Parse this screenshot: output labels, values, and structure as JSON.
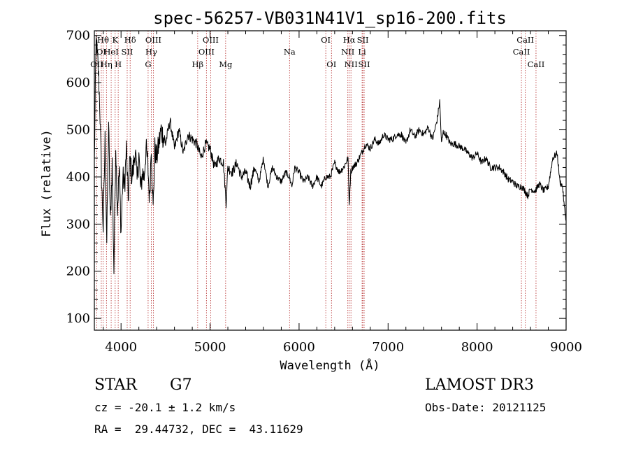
{
  "chart_data": {
    "type": "line",
    "title": "spec-56257-VB031N41V1_sp16-200.fits",
    "xlabel": "Wavelength (Å)",
    "ylabel": "Flux (relative)",
    "xlim": [
      3700,
      9000
    ],
    "ylim": [
      75,
      710
    ],
    "xticks": [
      4000,
      5000,
      6000,
      7000,
      8000,
      9000
    ],
    "yticks": [
      100,
      200,
      300,
      400,
      500,
      600,
      700
    ],
    "series": [
      {
        "name": "spectrum",
        "color": "#000000",
        "x": [
          3700,
          3720,
          3740,
          3760,
          3780,
          3800,
          3820,
          3840,
          3860,
          3880,
          3900,
          3920,
          3940,
          3960,
          3980,
          4000,
          4020,
          4040,
          4060,
          4080,
          4100,
          4120,
          4140,
          4160,
          4180,
          4200,
          4220,
          4240,
          4260,
          4280,
          4300,
          4320,
          4340,
          4360,
          4380,
          4400,
          4450,
          4500,
          4550,
          4600,
          4650,
          4700,
          4750,
          4800,
          4850,
          4900,
          4950,
          5000,
          5050,
          5100,
          5150,
          5180,
          5200,
          5250,
          5300,
          5350,
          5400,
          5450,
          5500,
          5550,
          5600,
          5650,
          5700,
          5750,
          5800,
          5850,
          5890,
          5920,
          5950,
          6000,
          6050,
          6100,
          6150,
          6200,
          6250,
          6300,
          6350,
          6400,
          6450,
          6500,
          6550,
          6563,
          6580,
          6600,
          6650,
          6700,
          6750,
          6800,
          6850,
          6900,
          6950,
          7000,
          7050,
          7100,
          7150,
          7200,
          7250,
          7300,
          7350,
          7400,
          7450,
          7500,
          7550,
          7580,
          7600,
          7620,
          7650,
          7700,
          7750,
          7800,
          7850,
          7900,
          7950,
          8000,
          8050,
          8100,
          8150,
          8200,
          8250,
          8300,
          8350,
          8400,
          8450,
          8500,
          8540,
          8570,
          8600,
          8650,
          8700,
          8750,
          8800,
          8850,
          8900,
          8930,
          8960,
          8980,
          9000
        ],
        "values": [
          430,
          690,
          640,
          560,
          400,
          290,
          480,
          260,
          520,
          300,
          430,
          200,
          470,
          330,
          420,
          280,
          400,
          380,
          460,
          350,
          440,
          400,
          420,
          460,
          390,
          450,
          370,
          410,
          400,
          460,
          430,
          350,
          470,
          330,
          460,
          440,
          500,
          470,
          520,
          460,
          500,
          450,
          490,
          480,
          470,
          440,
          470,
          460,
          420,
          440,
          430,
          345,
          420,
          410,
          430,
          400,
          410,
          380,
          420,
          390,
          440,
          380,
          420,
          400,
          390,
          410,
          400,
          380,
          420,
          410,
          390,
          400,
          380,
          400,
          380,
          400,
          400,
          430,
          410,
          420,
          440,
          340,
          410,
          420,
          430,
          450,
          470,
          460,
          480,
          470,
          490,
          480,
          480,
          490,
          490,
          470,
          500,
          485,
          500,
          490,
          505,
          480,
          520,
          560,
          470,
          495,
          490,
          470,
          470,
          465,
          460,
          450,
          440,
          450,
          430,
          440,
          420,
          420,
          420,
          410,
          395,
          390,
          380,
          380,
          370,
          360,
          375,
          370,
          385,
          370,
          380,
          440,
          450,
          390,
          380,
          335,
          310
        ]
      }
    ],
    "lines": [
      {
        "label": "Hθ",
        "wl": 3798,
        "row": 1
      },
      {
        "label": "OI",
        "wl": 3778,
        "row": 2
      },
      {
        "label": "OII",
        "wl": 3727,
        "row": 3
      },
      {
        "label": "K",
        "wl": 3934,
        "row": 1
      },
      {
        "label": "HeI",
        "wl": 3889,
        "row": 2
      },
      {
        "label": "Hη",
        "wl": 3836,
        "row": 3
      },
      {
        "label": "Hδ",
        "wl": 4102,
        "row": 1
      },
      {
        "label": "SII",
        "wl": 4069,
        "row": 2
      },
      {
        "label": "H",
        "wl": 3968,
        "row": 3
      },
      {
        "label": "OIII",
        "wl": 4363,
        "row": 1
      },
      {
        "label": "Hγ",
        "wl": 4340,
        "row": 2
      },
      {
        "label": "G",
        "wl": 4304,
        "row": 3
      },
      {
        "label": "OIII",
        "wl": 5007,
        "row": 1
      },
      {
        "label": "OIII",
        "wl": 4959,
        "row": 2
      },
      {
        "label": "Hβ",
        "wl": 4861,
        "row": 3
      },
      {
        "label": "Mg",
        "wl": 5175,
        "row": 3
      },
      {
        "label": "Na",
        "wl": 5893,
        "row": 2
      },
      {
        "label": "OI",
        "wl": 6300,
        "row": 1
      },
      {
        "label": "OI",
        "wl": 6364,
        "row": 3
      },
      {
        "label": "Hα",
        "wl": 6563,
        "row": 1
      },
      {
        "label": "NII",
        "wl": 6548,
        "row": 2
      },
      {
        "label": "NII",
        "wl": 6583,
        "row": 3
      },
      {
        "label": "SII",
        "wl": 6716,
        "row": 1
      },
      {
        "label": "Li",
        "wl": 6708,
        "row": 2
      },
      {
        "label": "SII",
        "wl": 6731,
        "row": 3
      },
      {
        "label": "CaII",
        "wl": 8542,
        "row": 1
      },
      {
        "label": "CaII",
        "wl": 8498,
        "row": 2
      },
      {
        "label": "CaII",
        "wl": 8662,
        "row": 3
      }
    ],
    "line_color": "#b22222"
  },
  "info": {
    "object_class": "STAR",
    "subclass": "G7",
    "survey": "LAMOST DR3",
    "redshift": "cz = -20.1 ± 1.2 km/s",
    "obs_date": "Obs-Date: 20121125",
    "coords": "RA =  29.44732, DEC =  43.11629"
  }
}
